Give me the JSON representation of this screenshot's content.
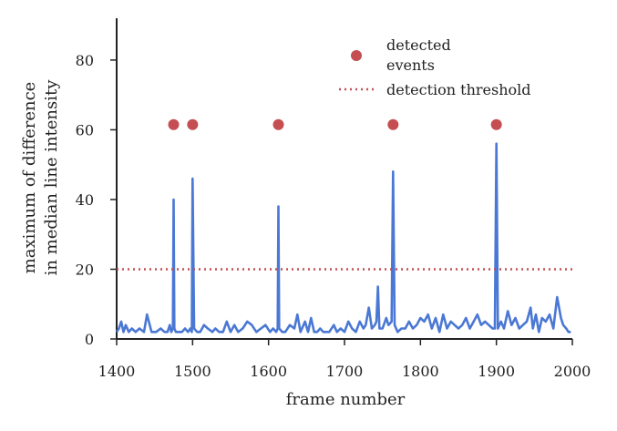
{
  "chart_data": {
    "type": "line",
    "title": "",
    "xlabel": "frame number",
    "ylabel": [
      "maximum of difference",
      "in median line intensity"
    ],
    "xlim": [
      1400,
      2000
    ],
    "ylim": [
      0,
      92
    ],
    "xticks": [
      1400,
      1500,
      1600,
      1700,
      1800,
      1900,
      2000
    ],
    "yticks": [
      0,
      20,
      40,
      60,
      80
    ],
    "xtick_labels": [
      "1400",
      "1500",
      "1600",
      "1700",
      "1800",
      "1900",
      "2000"
    ],
    "ytick_labels": [
      "0",
      "20",
      "40",
      "60",
      "80"
    ],
    "grid": false,
    "legend_position": "top-right",
    "colors": {
      "signal": "#4a78d4",
      "event": "#c44e52",
      "threshold": "#c44e52",
      "axis": "#222222"
    },
    "series": [
      {
        "kind": "line",
        "x": [
          1400,
          1403,
          1406,
          1409,
          1412,
          1416,
          1420,
          1425,
          1430,
          1436,
          1440,
          1446,
          1452,
          1458,
          1463,
          1467,
          1470,
          1472,
          1474,
          1475,
          1476,
          1478,
          1482,
          1486,
          1490,
          1494,
          1497,
          1499,
          1500,
          1502,
          1506,
          1510,
          1515,
          1520,
          1526,
          1530,
          1535,
          1540,
          1545,
          1550,
          1555,
          1560,
          1566,
          1572,
          1578,
          1584,
          1590,
          1596,
          1602,
          1606,
          1610,
          1612,
          1613,
          1614,
          1618,
          1622,
          1628,
          1634,
          1638,
          1642,
          1648,
          1652,
          1656,
          1660,
          1664,
          1668,
          1672,
          1676,
          1680,
          1686,
          1690,
          1695,
          1700,
          1705,
          1710,
          1715,
          1720,
          1725,
          1728,
          1732,
          1736,
          1740,
          1742,
          1744,
          1746,
          1750,
          1755,
          1758,
          1762,
          1764,
          1766,
          1770,
          1775,
          1780,
          1785,
          1790,
          1795,
          1800,
          1805,
          1810,
          1815,
          1820,
          1825,
          1830,
          1835,
          1840,
          1845,
          1850,
          1855,
          1860,
          1865,
          1870,
          1875,
          1880,
          1885,
          1890,
          1895,
          1898,
          1900,
          1902,
          1906,
          1910,
          1915,
          1920,
          1925,
          1930,
          1935,
          1940,
          1945,
          1948,
          1952,
          1956,
          1960,
          1965,
          1970,
          1975,
          1980,
          1985,
          1988,
          1992,
          1995,
          1998
        ],
        "y": [
          2,
          3,
          5,
          2,
          4,
          2,
          3,
          2,
          3,
          2,
          7,
          2,
          2,
          3,
          2,
          2,
          4,
          2,
          3,
          40,
          3,
          2,
          2,
          2,
          3,
          2,
          3,
          2,
          46,
          3,
          2,
          2,
          4,
          3,
          2,
          3,
          2,
          2,
          5,
          2,
          4,
          2,
          3,
          5,
          4,
          2,
          3,
          4,
          2,
          3,
          2,
          3,
          38,
          3,
          2,
          2,
          4,
          3,
          7,
          2,
          5,
          2,
          6,
          2,
          2,
          3,
          2,
          2,
          2,
          4,
          2,
          3,
          2,
          5,
          3,
          2,
          5,
          3,
          4,
          9,
          3,
          4,
          5,
          15,
          3,
          3,
          6,
          4,
          5,
          48,
          4,
          2,
          3,
          3,
          5,
          3,
          4,
          6,
          5,
          7,
          3,
          6,
          2,
          7,
          3,
          5,
          4,
          3,
          4,
          6,
          3,
          5,
          7,
          4,
          5,
          4,
          3,
          3,
          56,
          3,
          5,
          3,
          8,
          4,
          6,
          3,
          4,
          5,
          9,
          3,
          7,
          2,
          6,
          5,
          7,
          3,
          12,
          6,
          4,
          3,
          2,
          2
        ]
      },
      {
        "kind": "scatter",
        "name": "detected\nevents",
        "x": [
          1475,
          1500,
          1613,
          1764,
          1900
        ],
        "y": [
          61.5,
          61.5,
          61.5,
          61.5,
          61.5
        ]
      },
      {
        "kind": "hline",
        "name": "detection threshold",
        "y": 20
      }
    ],
    "legend": [
      {
        "kind": "marker",
        "label_lines": [
          "detected",
          "events"
        ]
      },
      {
        "kind": "dotted-line",
        "label_lines": [
          "detection threshold"
        ]
      }
    ]
  }
}
